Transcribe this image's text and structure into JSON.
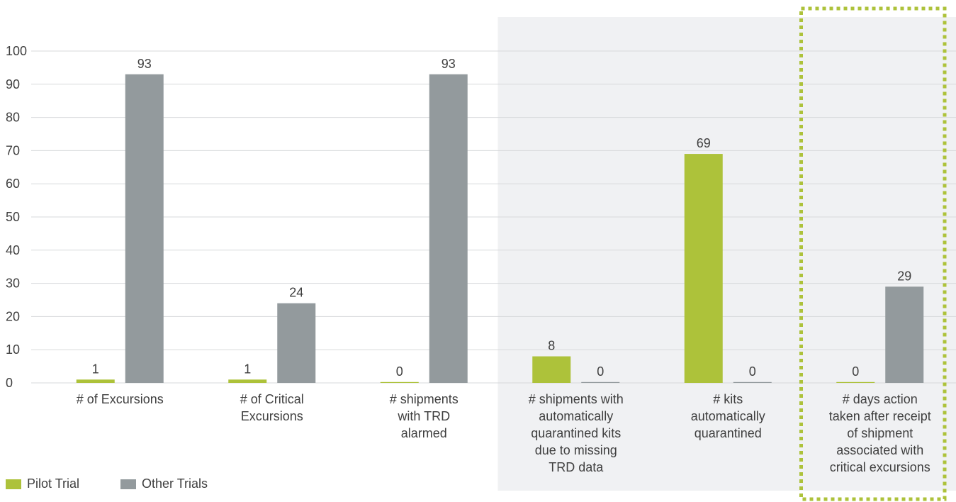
{
  "chart_data": {
    "type": "bar",
    "categories": [
      "# of Excursions",
      "# of Critical Excursions",
      "# shipments with TRD alarmed",
      "# shipments with automatically quarantined kits due to missing TRD data",
      "# kits automatically quarantined",
      "# days action taken after receipt of shipment associated with critical excursions"
    ],
    "category_label_lines": [
      [
        "# of Excursions"
      ],
      [
        "# of Critical",
        "Excursions"
      ],
      [
        "# shipments",
        "with TRD",
        "alarmed"
      ],
      [
        "# shipments with",
        "automatically",
        "quarantined kits",
        "due to missing",
        "TRD data"
      ],
      [
        "# kits",
        "automatically",
        "quarantined"
      ],
      [
        "# days action",
        "taken after receipt",
        "of shipment",
        "associated with",
        "critical excursions"
      ]
    ],
    "series": [
      {
        "name": "Pilot Trial",
        "color": "#adc23a",
        "values": [
          1,
          1,
          0,
          8,
          69,
          0
        ]
      },
      {
        "name": "Other Trials",
        "color": "#939a9d",
        "values": [
          93,
          24,
          93,
          0,
          0,
          29
        ]
      }
    ],
    "data_labels": [
      [
        "1",
        "1",
        "0",
        "8",
        "69",
        "0"
      ],
      [
        "93",
        "24",
        "93",
        "0",
        "0",
        "29"
      ]
    ],
    "y_ticks": [
      "0",
      "10",
      "20",
      "30",
      "40",
      "50",
      "60",
      "70",
      "80",
      "90",
      "100"
    ],
    "ylim": [
      0,
      100
    ],
    "grid": true,
    "legend_position": "bottom-left",
    "shaded_categories": [
      3,
      4,
      5
    ],
    "highlighted_category": 5,
    "highlight_color": "#adc23a",
    "shade_color": "#f0f1f3"
  }
}
